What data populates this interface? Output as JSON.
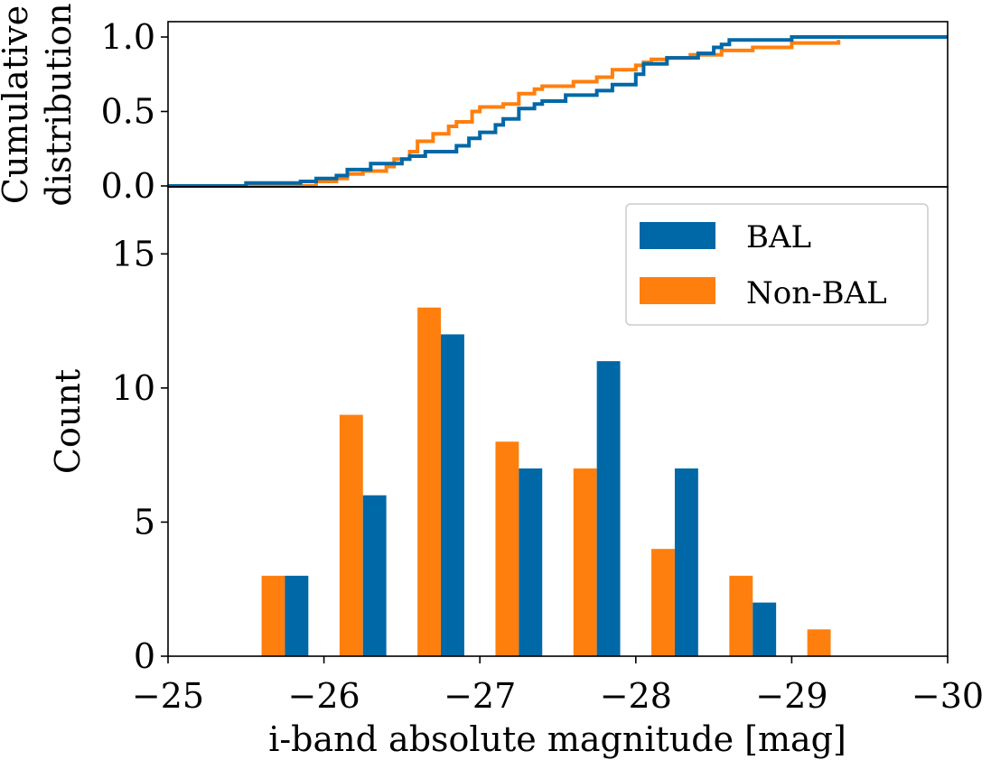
{
  "colors": {
    "bal": "#0068a6",
    "non_bal": "#ff7f0e"
  },
  "chart_data": [
    {
      "type": "line",
      "panel": "top",
      "ylabel": "Cumulative distribution",
      "ylim": [
        0.0,
        1.0
      ],
      "xlim": [
        -25,
        -30
      ],
      "yticks": [
        0.0,
        0.5,
        1.0
      ],
      "ytick_labels": [
        "0.0",
        "0.5",
        "1.0"
      ],
      "grid": false,
      "step": true,
      "series": [
        {
          "name": "BAL",
          "x": [
            -25.0,
            -25.5,
            -25.55,
            -25.85,
            -25.95,
            -26.0,
            -26.08,
            -26.15,
            -26.3,
            -26.4,
            -26.5,
            -26.55,
            -26.65,
            -26.8,
            -26.85,
            -26.93,
            -27.0,
            -27.1,
            -27.15,
            -27.25,
            -27.35,
            -27.4,
            -27.55,
            -27.6,
            -27.75,
            -27.85,
            -28.0,
            -28.05,
            -28.1,
            -28.2,
            -28.3,
            -28.4,
            -28.5,
            -28.55,
            -28.6,
            -29.0,
            -30.0
          ],
          "y": [
            0.0,
            0.02,
            0.02,
            0.03,
            0.05,
            0.05,
            0.07,
            0.11,
            0.15,
            0.15,
            0.18,
            0.2,
            0.23,
            0.23,
            0.27,
            0.32,
            0.36,
            0.41,
            0.45,
            0.52,
            0.55,
            0.57,
            0.61,
            0.61,
            0.64,
            0.68,
            0.75,
            0.82,
            0.82,
            0.86,
            0.86,
            0.89,
            0.93,
            0.95,
            0.98,
            1.0,
            1.0
          ]
        },
        {
          "name": "Non-BAL",
          "x": [
            -25.0,
            -25.85,
            -25.95,
            -26.08,
            -26.15,
            -26.25,
            -26.4,
            -26.45,
            -26.55,
            -26.6,
            -26.7,
            -26.8,
            -26.85,
            -26.95,
            -27.0,
            -27.15,
            -27.25,
            -27.35,
            -27.4,
            -27.55,
            -27.6,
            -27.75,
            -27.85,
            -28.0,
            -28.05,
            -28.1,
            -28.2,
            -28.3,
            -28.35,
            -28.55,
            -28.75,
            -29.0,
            -29.3
          ],
          "y": [
            0.0,
            0.0,
            0.03,
            0.05,
            0.08,
            0.1,
            0.13,
            0.18,
            0.23,
            0.3,
            0.35,
            0.4,
            0.43,
            0.5,
            0.53,
            0.55,
            0.62,
            0.65,
            0.67,
            0.67,
            0.7,
            0.73,
            0.78,
            0.81,
            0.83,
            0.85,
            0.86,
            0.86,
            0.88,
            0.91,
            0.93,
            0.96,
            0.98
          ]
        }
      ]
    },
    {
      "type": "bar",
      "panel": "bottom",
      "xlabel": "i-band absolute magnitude [mag]",
      "ylabel": "Count",
      "xlim": [
        -25,
        -30
      ],
      "ylim": [
        0,
        17.5
      ],
      "xticks": [
        -25,
        -26,
        -27,
        -28,
        -29,
        -30
      ],
      "xtick_labels": [
        "−25",
        "−26",
        "−27",
        "−28",
        "−29",
        "−30"
      ],
      "yticks": [
        0,
        5,
        10,
        15
      ],
      "ytick_labels": [
        "0",
        "5",
        "10",
        "15"
      ],
      "grid": false,
      "legend_position": "top-right",
      "bin_edges": [
        -25.5,
        -26.0,
        -26.5,
        -27.0,
        -27.5,
        -28.0,
        -28.5,
        -29.0,
        -29.5
      ],
      "series": [
        {
          "name": "Non-BAL",
          "values": [
            3,
            9,
            13,
            8,
            7,
            4,
            3,
            1
          ]
        },
        {
          "name": "BAL",
          "values": [
            3,
            6,
            12,
            7,
            11,
            7,
            2,
            0
          ]
        }
      ]
    }
  ]
}
